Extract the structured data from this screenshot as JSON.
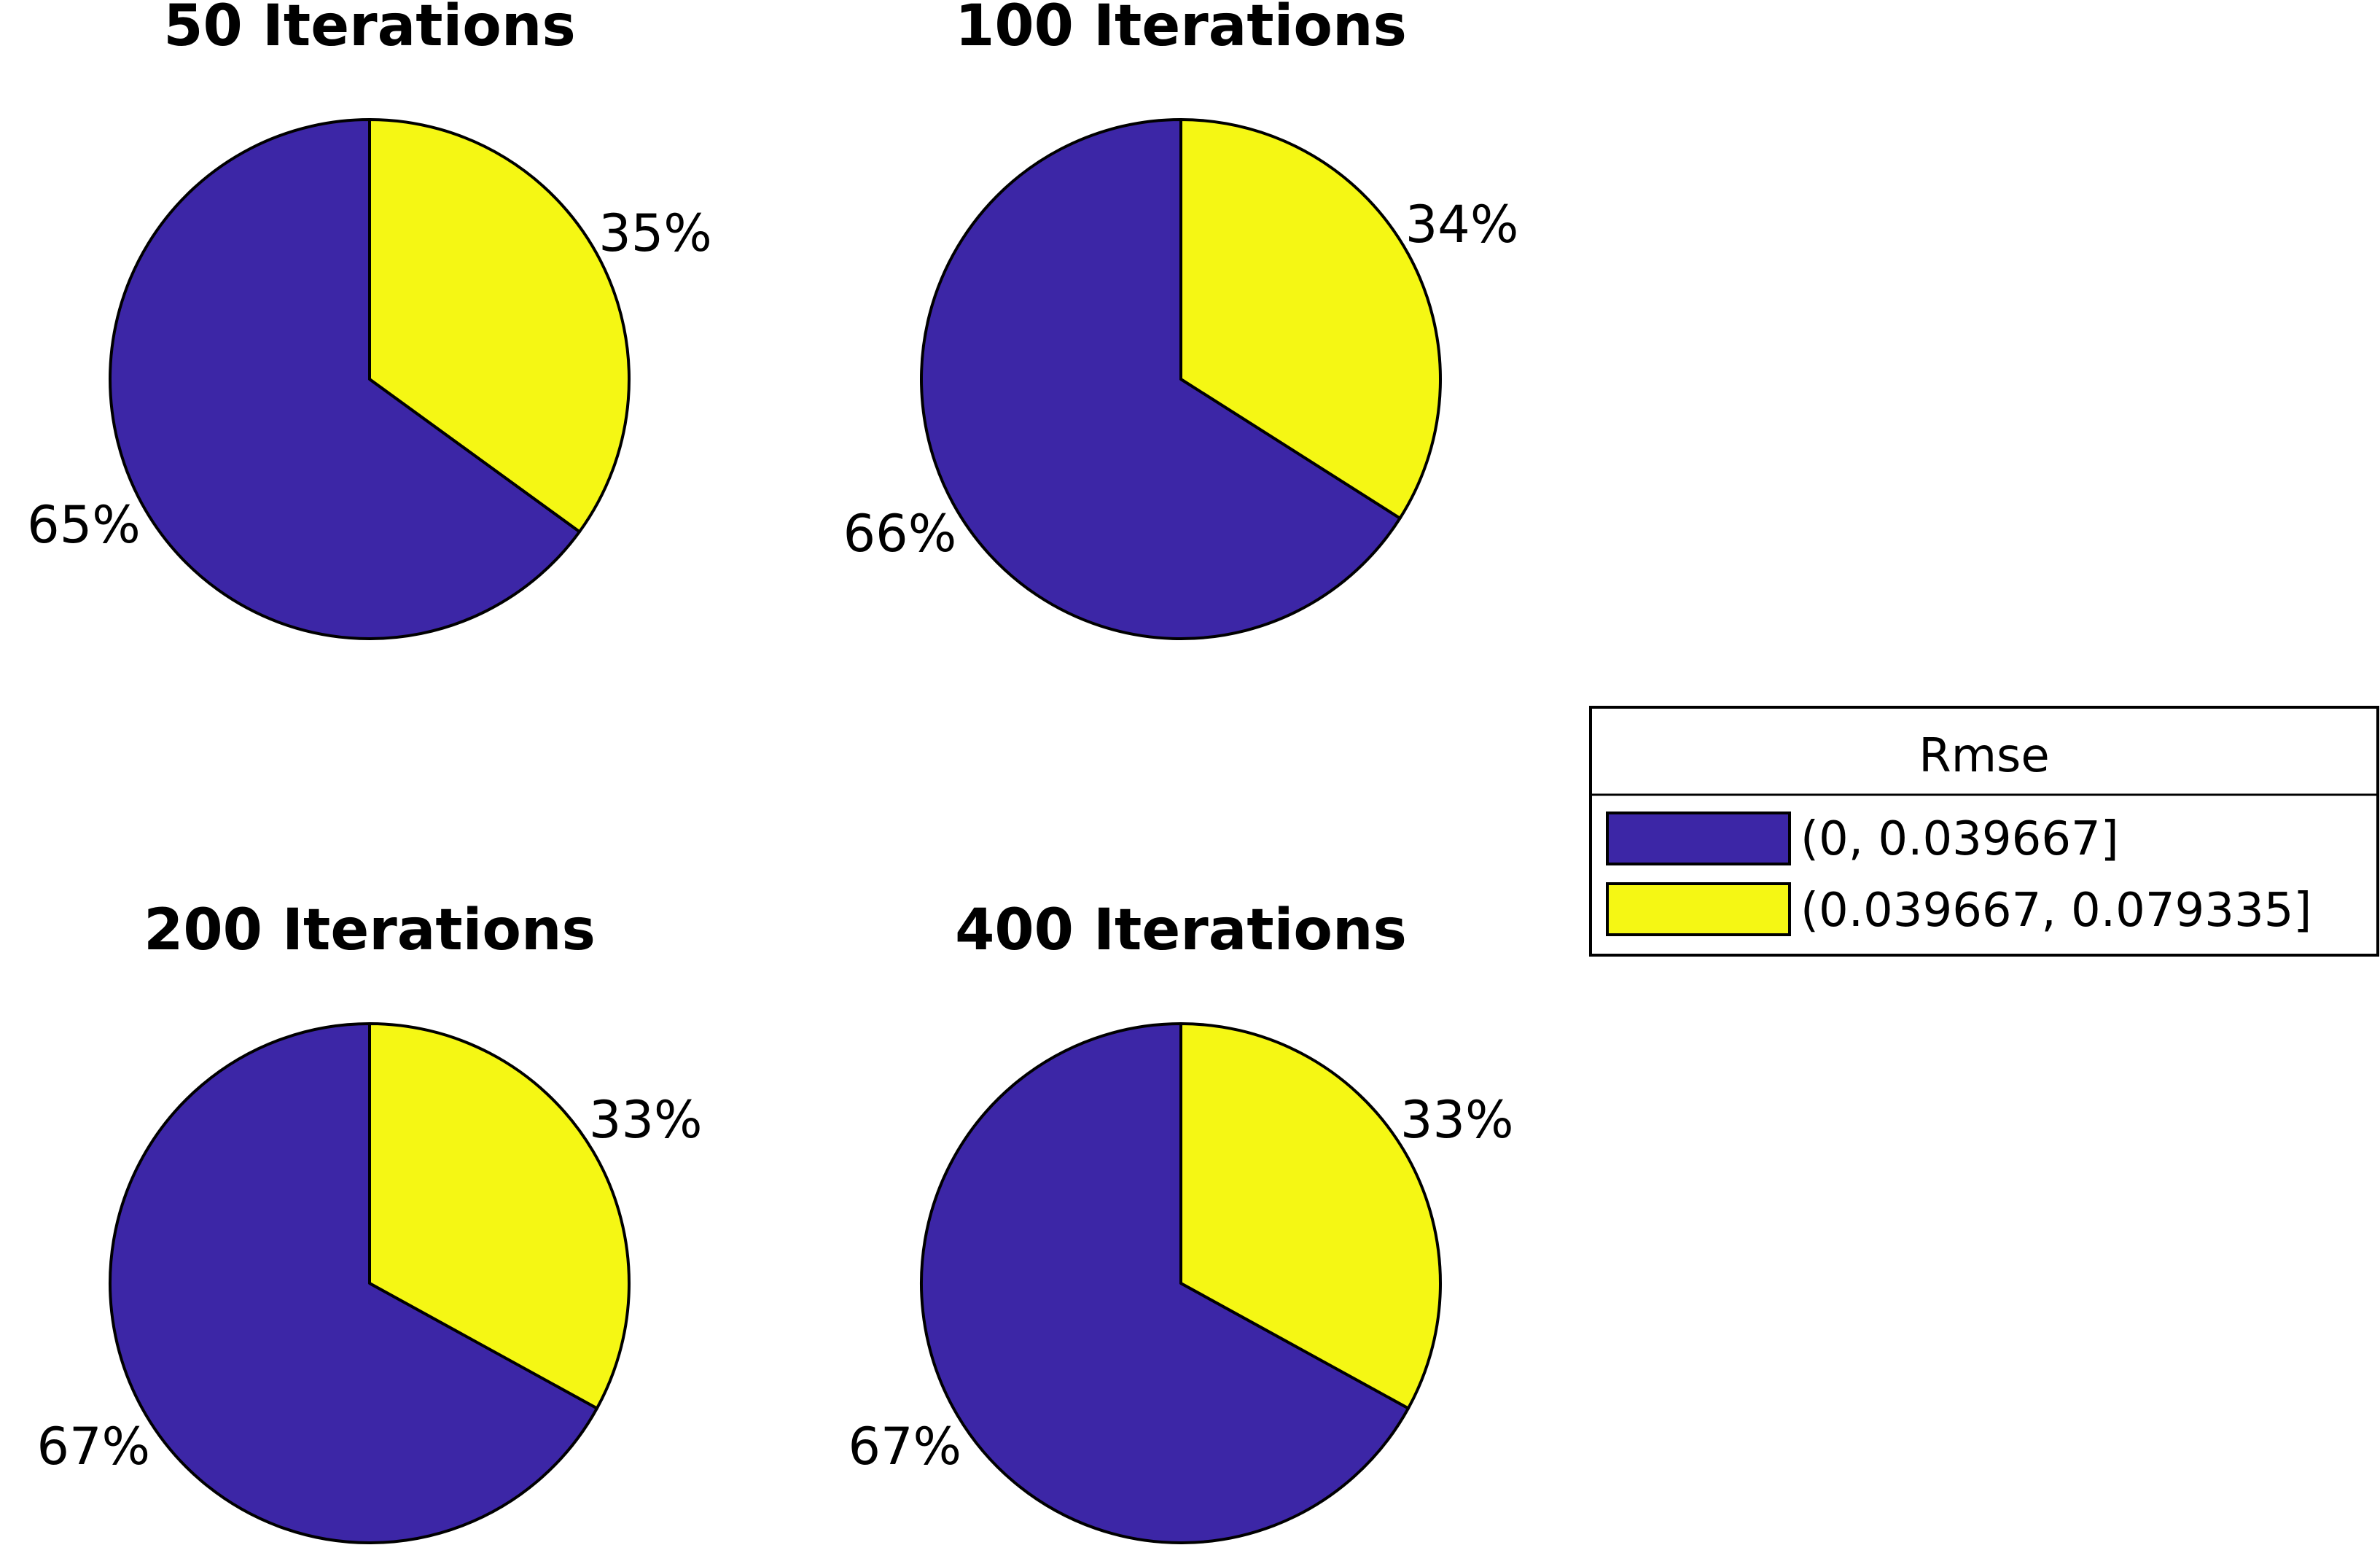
{
  "chart_data": [
    {
      "type": "pie",
      "title": "50 Iterations",
      "slices": [
        {
          "label": "35%",
          "value": 35,
          "category": "(0.039667, 0.079335]"
        },
        {
          "label": "65%",
          "value": 65,
          "category": "(0, 0.039667]"
        }
      ]
    },
    {
      "type": "pie",
      "title": "100 Iterations",
      "slices": [
        {
          "label": "34%",
          "value": 34,
          "category": "(0.039667, 0.079335]"
        },
        {
          "label": "66%",
          "value": 66,
          "category": "(0, 0.039667]"
        }
      ]
    },
    {
      "type": "pie",
      "title": "200 Iterations",
      "slices": [
        {
          "label": "33%",
          "value": 33,
          "category": "(0.039667, 0.079335]"
        },
        {
          "label": "67%",
          "value": 67,
          "category": "(0, 0.039667]"
        }
      ]
    },
    {
      "type": "pie",
      "title": "400 Iterations",
      "slices": [
        {
          "label": "33%",
          "value": 33,
          "category": "(0.039667, 0.079335]"
        },
        {
          "label": "67%",
          "value": 67,
          "category": "(0, 0.039667]"
        }
      ]
    }
  ],
  "legend": {
    "title": "Rmse",
    "placement": "right",
    "entries": [
      {
        "label": "(0, 0.039667]",
        "color": "#3c26a6"
      },
      {
        "label": "(0.039667, 0.079335]",
        "color": "#f5f714"
      }
    ]
  },
  "colors": {
    "(0, 0.039667]": "#3c26a6",
    "(0.039667, 0.079335]": "#f5f714"
  }
}
